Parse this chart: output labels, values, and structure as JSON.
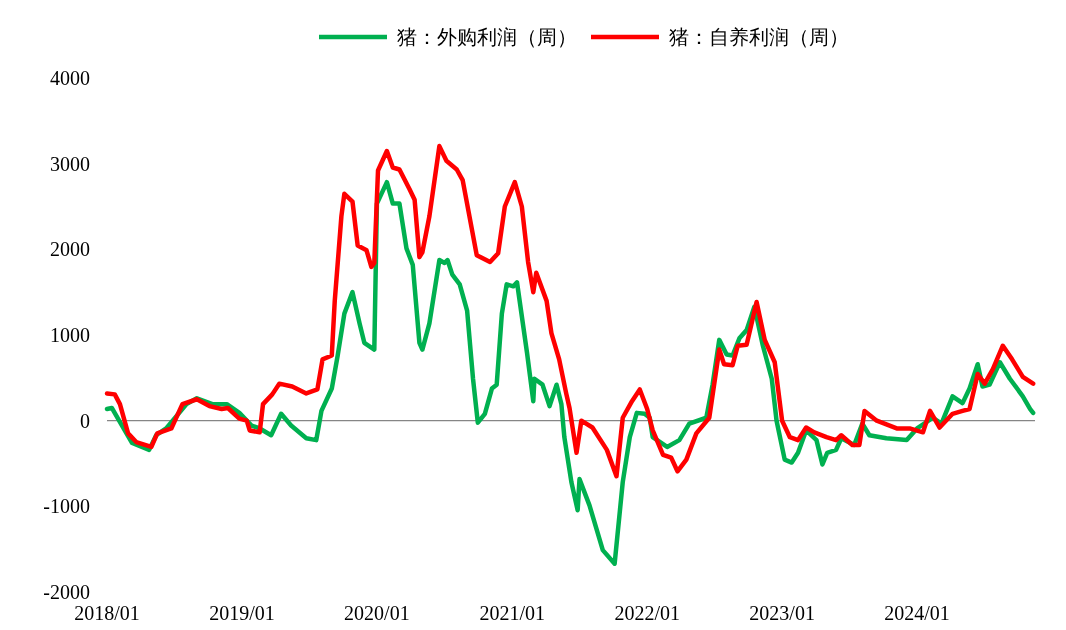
{
  "chart_data": {
    "type": "line",
    "legend": "top",
    "grid": false,
    "marker": "none",
    "line_style": "solid",
    "xlim": [
      "2018-01-01",
      "2024-11-15"
    ],
    "xticks": [
      {
        "value": "2018-01-01",
        "label": "2018/01"
      },
      {
        "value": "2019-01-01",
        "label": "2019/01"
      },
      {
        "value": "2020-01-01",
        "label": "2020/01"
      },
      {
        "value": "2021-01-01",
        "label": "2021/01"
      },
      {
        "value": "2022-01-01",
        "label": "2022/01"
      },
      {
        "value": "2023-01-01",
        "label": "2023/01"
      },
      {
        "value": "2024-01-01",
        "label": "2024/01"
      }
    ],
    "ref_lines": [
      {
        "axis": "y",
        "value": 0,
        "color": "#868686",
        "line_style": "solid"
      }
    ],
    "ylim": [
      -2000,
      4000
    ],
    "yticks": [
      -2000,
      -1000,
      0,
      1000,
      2000,
      3000,
      4000
    ],
    "series": [
      {
        "name": "猪：外购利润（周）",
        "color": "#00b050",
        "x": [
          "2018-01-01",
          "2018-01-14",
          "2018-02-18",
          "2018-03-10",
          "2018-04-25",
          "2018-05-14",
          "2018-06-10",
          "2018-08-04",
          "2018-09-01",
          "2018-10-13",
          "2018-11-21",
          "2018-12-25",
          "2019-01-27",
          "2019-02-18",
          "2019-03-21",
          "2019-04-17",
          "2019-05-14",
          "2019-06-24",
          "2019-07-21",
          "2019-08-04",
          "2019-09-01",
          "2019-09-17",
          "2019-10-05",
          "2019-10-27",
          "2019-11-15",
          "2019-11-28",
          "2019-12-25",
          "2020-01-01",
          "2020-01-28",
          "2020-02-13",
          "2020-03-02",
          "2020-03-21",
          "2020-04-07",
          "2020-04-25",
          "2020-05-03",
          "2020-05-22",
          "2020-06-18",
          "2020-07-02",
          "2020-07-10",
          "2020-07-23",
          "2020-08-12",
          "2020-09-01",
          "2020-09-17",
          "2020-09-30",
          "2020-10-19",
          "2020-11-07",
          "2020-11-20",
          "2020-12-04",
          "2020-12-17",
          "2021-01-04",
          "2021-01-14",
          "2021-02-10",
          "2021-02-27",
          "2021-03-02",
          "2021-03-24",
          "2021-04-12",
          "2021-05-01",
          "2021-05-14",
          "2021-05-22",
          "2021-06-10",
          "2021-06-27",
          "2021-07-02",
          "2021-07-29",
          "2021-09-03",
          "2021-10-05",
          "2021-10-27",
          "2021-11-15",
          "2021-12-04",
          "2021-12-25",
          "2022-01-08",
          "2022-01-16",
          "2022-02-24",
          "2022-03-29",
          "2022-04-25",
          "2022-06-10",
          "2022-06-27",
          "2022-07-15",
          "2022-08-04",
          "2022-08-20",
          "2022-09-08",
          "2022-09-27",
          "2022-10-18",
          "2022-11-10",
          "2022-12-04",
          "2022-12-17",
          "2023-01-08",
          "2023-01-27",
          "2023-02-13",
          "2023-03-07",
          "2023-04-04",
          "2023-04-20",
          "2023-05-03",
          "2023-05-27",
          "2023-06-10",
          "2023-07-15",
          "2023-08-06",
          "2023-08-25",
          "2023-10-10",
          "2023-12-04",
          "2024-01-01",
          "2024-02-13",
          "2024-03-07",
          "2024-04-06",
          "2024-05-03",
          "2024-05-22",
          "2024-06-13",
          "2024-06-26",
          "2024-07-15",
          "2024-08-12",
          "2024-09-08",
          "2024-10-13",
          "2024-11-02",
          "2024-11-10"
        ],
        "values": [
          136,
          148,
          -114,
          -261,
          -341,
          -170,
          -91,
          193,
          261,
          193,
          193,
          91,
          -57,
          -91,
          -170,
          80,
          -57,
          -205,
          -227,
          114,
          375,
          761,
          1250,
          1500,
          1136,
          909,
          830,
          2534,
          2784,
          2534,
          2534,
          2011,
          1818,
          909,
          830,
          1136,
          1875,
          1841,
          1875,
          1705,
          1591,
          1284,
          489,
          -23,
          80,
          375,
          420,
          1250,
          1591,
          1568,
          1614,
          795,
          227,
          489,
          420,
          170,
          420,
          193,
          -193,
          -716,
          -1045,
          -682,
          -989,
          -1511,
          -1670,
          -716,
          -193,
          91,
          80,
          34,
          -193,
          -307,
          -227,
          -34,
          34,
          420,
          943,
          773,
          761,
          966,
          1057,
          1330,
          875,
          489,
          0,
          -455,
          -489,
          -375,
          -114,
          -227,
          -511,
          -375,
          -341,
          -205,
          -284,
          -34,
          -170,
          -205,
          -227,
          -91,
          34,
          -34,
          284,
          205,
          375,
          659,
          398,
          420,
          682,
          489,
          284,
          136,
          91
        ]
      },
      {
        "name": "猪：自养利润（周）",
        "color": "#ff0000",
        "x": [
          "2018-01-01",
          "2018-01-22",
          "2018-02-05",
          "2018-02-27",
          "2018-03-21",
          "2018-05-01",
          "2018-05-17",
          "2018-06-24",
          "2018-07-24",
          "2018-09-01",
          "2018-10-05",
          "2018-11-07",
          "2018-11-24",
          "2018-12-25",
          "2019-01-14",
          "2019-01-22",
          "2019-02-18",
          "2019-02-27",
          "2019-03-24",
          "2019-04-12",
          "2019-05-17",
          "2019-06-24",
          "2019-07-24",
          "2019-08-07",
          "2019-09-01",
          "2019-09-09",
          "2019-09-27",
          "2019-10-05",
          "2019-10-27",
          "2019-11-10",
          "2019-12-04",
          "2019-12-17",
          "2019-12-25",
          "2020-01-04",
          "2020-01-28",
          "2020-02-13",
          "2020-03-02",
          "2020-03-29",
          "2020-04-12",
          "2020-04-25",
          "2020-05-03",
          "2020-05-22",
          "2020-06-18",
          "2020-07-07",
          "2020-08-04",
          "2020-08-20",
          "2020-09-27",
          "2020-11-02",
          "2020-11-24",
          "2020-12-12",
          "2021-01-08",
          "2021-01-27",
          "2021-02-13",
          "2021-02-27",
          "2021-03-07",
          "2021-04-04",
          "2021-04-17",
          "2021-05-08",
          "2021-05-27",
          "2021-06-05",
          "2021-06-24",
          "2021-07-07",
          "2021-08-06",
          "2021-09-14",
          "2021-10-10",
          "2021-10-27",
          "2021-11-21",
          "2021-12-12",
          "2022-01-01",
          "2022-01-16",
          "2022-02-13",
          "2022-03-07",
          "2022-03-24",
          "2022-04-17",
          "2022-05-14",
          "2022-06-18",
          "2022-07-15",
          "2022-07-28",
          "2022-08-20",
          "2022-09-03",
          "2022-09-27",
          "2022-10-24",
          "2022-11-15",
          "2022-12-12",
          "2023-01-01",
          "2023-01-22",
          "2023-02-13",
          "2023-03-07",
          "2023-03-29",
          "2023-05-01",
          "2023-05-27",
          "2023-06-10",
          "2023-07-10",
          "2023-07-29",
          "2023-08-12",
          "2023-09-14",
          "2023-11-07",
          "2023-12-12",
          "2024-01-17",
          "2024-02-05",
          "2024-03-02",
          "2024-04-06",
          "2024-05-03",
          "2024-05-22",
          "2024-06-13",
          "2024-07-02",
          "2024-07-24",
          "2024-08-20",
          "2024-09-14",
          "2024-10-13",
          "2024-11-10"
        ],
        "values": [
          318,
          307,
          193,
          -148,
          -250,
          -307,
          -148,
          -91,
          193,
          250,
          170,
          136,
          148,
          23,
          0,
          -114,
          -136,
          193,
          307,
          432,
          398,
          318,
          364,
          716,
          761,
          1398,
          2386,
          2648,
          2557,
          2045,
          1989,
          1795,
          1841,
          2920,
          3148,
          2955,
          2932,
          2705,
          2580,
          1909,
          1966,
          2386,
          3205,
          3034,
          2932,
          2807,
          1932,
          1852,
          1955,
          2500,
          2784,
          2500,
          1852,
          1500,
          1727,
          1398,
          1023,
          716,
          318,
          148,
          -375,
          0,
          -80,
          -341,
          -648,
          34,
          227,
          364,
          136,
          -114,
          -398,
          -432,
          -591,
          -455,
          -148,
          34,
          830,
          659,
          648,
          875,
          886,
          1386,
          943,
          682,
          0,
          -193,
          -227,
          -80,
          -136,
          -193,
          -227,
          -170,
          -284,
          -284,
          114,
          0,
          -91,
          -91,
          -136,
          114,
          -80,
          80,
          114,
          136,
          545,
          432,
          602,
          875,
          716,
          511,
          432
        ]
      }
    ]
  }
}
